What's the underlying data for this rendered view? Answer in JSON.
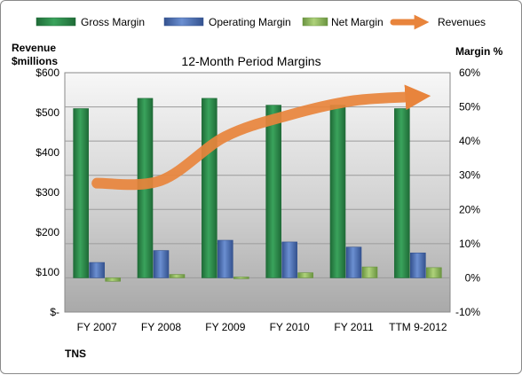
{
  "chart_data": {
    "type": "bar",
    "title": "12-Month Period Margins",
    "company": "TNS",
    "categories": [
      "FY 2007",
      "FY 2008",
      "FY 2009",
      "FY 2010",
      "FY 2011",
      "TTM 9-2012"
    ],
    "y_left": {
      "label_line1": "Revenue",
      "label_line2": "$millions",
      "range": [
        0,
        600
      ],
      "ticks": [
        "$-",
        "$100",
        "$200",
        "$300",
        "$400",
        "$500",
        "$600"
      ]
    },
    "y_right": {
      "label": "Margin %",
      "range": [
        -10,
        60
      ],
      "ticks": [
        "-10%",
        "0%",
        "10%",
        "20%",
        "30%",
        "40%",
        "50%",
        "60%"
      ]
    },
    "series": [
      {
        "name": "Gross Margin",
        "axis": "right",
        "kind": "bar",
        "color": "#2e8b4a",
        "values": [
          49.5,
          52.5,
          52.5,
          50.5,
          50.5,
          49.5
        ]
      },
      {
        "name": "Operating Margin",
        "axis": "right",
        "kind": "bar",
        "color": "#4f72b8",
        "values": [
          4.5,
          8.0,
          11.0,
          10.5,
          9.0,
          7.3
        ]
      },
      {
        "name": "Net Margin",
        "axis": "right",
        "kind": "bar",
        "color": "#8db75a",
        "values": [
          -1.0,
          1.0,
          0.0,
          1.5,
          3.2,
          3.0
        ]
      },
      {
        "name": "Revenues",
        "axis": "left",
        "kind": "line",
        "color": "#e8843c",
        "values": [
          323,
          330,
          440,
          494,
          530,
          540
        ]
      }
    ],
    "legend_position": "top",
    "grid": true
  }
}
